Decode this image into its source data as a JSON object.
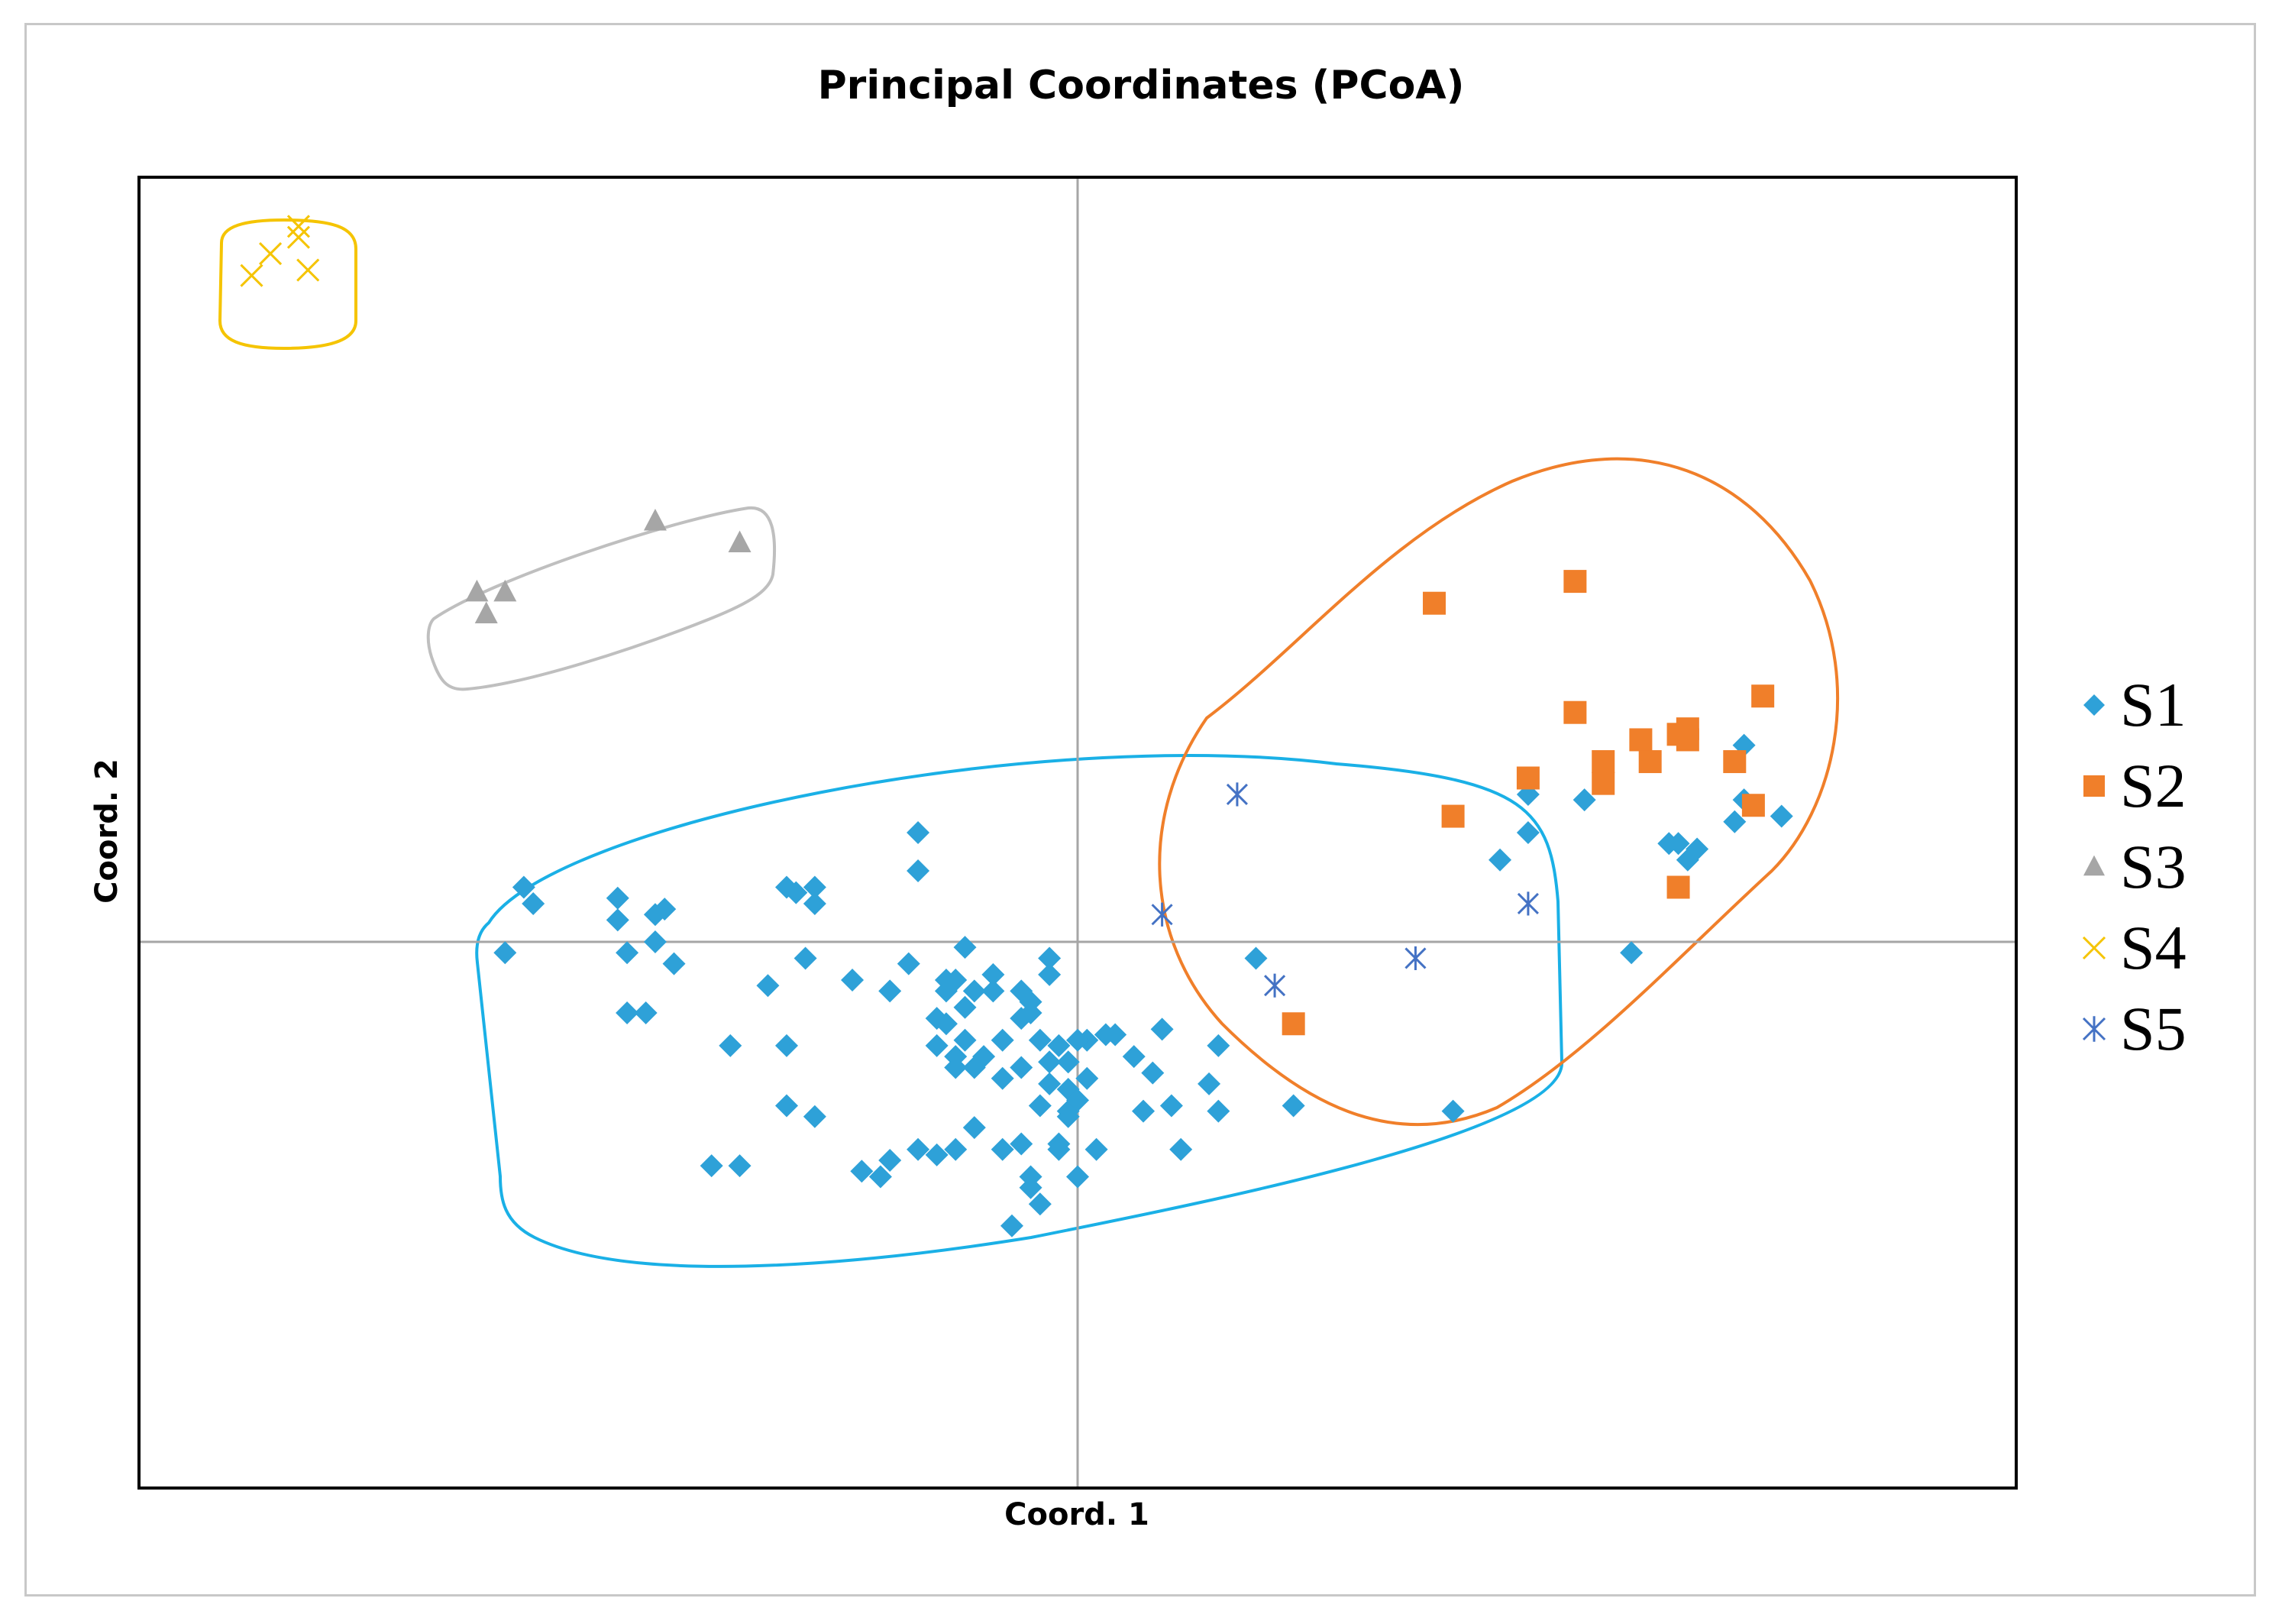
{
  "chart_data": {
    "type": "scatter",
    "title": "Principal Coordinates (PCoA)",
    "xlabel": "Coord. 1",
    "ylabel": "Coord. 2",
    "xlim": [
      -1.0,
      1.0
    ],
    "ylim": [
      -1.0,
      1.4
    ],
    "grid": false,
    "zero_lines": true,
    "legend_position": "right",
    "series": [
      {
        "name": "S1",
        "marker": "diamond",
        "color": "#2ea1d8",
        "points": [
          [
            -0.59,
            0.1
          ],
          [
            -0.58,
            0.07
          ],
          [
            -0.61,
            -0.02
          ],
          [
            -0.49,
            0.08
          ],
          [
            -0.49,
            0.04
          ],
          [
            -0.48,
            -0.02
          ],
          [
            -0.45,
            0.05
          ],
          [
            -0.44,
            0.06
          ],
          [
            -0.45,
            0.0
          ],
          [
            -0.43,
            -0.04
          ],
          [
            -0.48,
            -0.13
          ],
          [
            -0.46,
            -0.13
          ],
          [
            -0.37,
            -0.19
          ],
          [
            -0.31,
            0.1
          ],
          [
            -0.3,
            0.09
          ],
          [
            -0.28,
            0.1
          ],
          [
            -0.28,
            0.07
          ],
          [
            -0.29,
            -0.03
          ],
          [
            -0.17,
            0.2
          ],
          [
            -0.17,
            0.13
          ],
          [
            -0.24,
            -0.07
          ],
          [
            -0.2,
            -0.09
          ],
          [
            -0.18,
            -0.04
          ],
          [
            -0.14,
            -0.09
          ],
          [
            -0.15,
            -0.14
          ],
          [
            -0.13,
            -0.07
          ],
          [
            -0.12,
            -0.01
          ],
          [
            -0.11,
            -0.09
          ],
          [
            -0.12,
            -0.18
          ],
          [
            -0.11,
            -0.23
          ],
          [
            -0.14,
            -0.15
          ],
          [
            -0.1,
            -0.21
          ],
          [
            -0.15,
            -0.19
          ],
          [
            -0.12,
            -0.12
          ],
          [
            -0.13,
            -0.23
          ],
          [
            -0.14,
            -0.07
          ],
          [
            -0.13,
            -0.21
          ],
          [
            -0.09,
            -0.06
          ],
          [
            -0.09,
            -0.09
          ],
          [
            -0.08,
            -0.18
          ],
          [
            -0.06,
            -0.09
          ],
          [
            -0.06,
            -0.14
          ],
          [
            -0.06,
            -0.23
          ],
          [
            -0.05,
            -0.11
          ],
          [
            -0.04,
            -0.18
          ],
          [
            -0.05,
            -0.13
          ],
          [
            -0.04,
            -0.3
          ],
          [
            -0.08,
            -0.25
          ],
          [
            -0.06,
            -0.37
          ],
          [
            -0.31,
            -0.19
          ],
          [
            -0.33,
            -0.08
          ],
          [
            -0.39,
            -0.41
          ],
          [
            -0.36,
            -0.41
          ],
          [
            -0.31,
            -0.3
          ],
          [
            -0.28,
            -0.32
          ],
          [
            -0.23,
            -0.42
          ],
          [
            -0.21,
            -0.43
          ],
          [
            -0.2,
            -0.4
          ],
          [
            -0.17,
            -0.38
          ],
          [
            -0.15,
            -0.39
          ],
          [
            -0.13,
            -0.38
          ],
          [
            -0.11,
            -0.34
          ],
          [
            -0.08,
            -0.38
          ],
          [
            -0.05,
            -0.43
          ],
          [
            -0.04,
            -0.48
          ],
          [
            -0.07,
            -0.52
          ],
          [
            -0.05,
            -0.45
          ],
          [
            -0.03,
            -0.26
          ],
          [
            -0.03,
            -0.22
          ],
          [
            -0.02,
            -0.19
          ],
          [
            -0.01,
            -0.27
          ],
          [
            -0.01,
            -0.31
          ],
          [
            -0.02,
            -0.37
          ],
          [
            -0.01,
            -0.22
          ],
          [
            -0.01,
            -0.32
          ],
          [
            0.0,
            -0.29
          ],
          [
            0.01,
            -0.25
          ],
          [
            0.01,
            -0.18
          ],
          [
            -0.03,
            -0.03
          ],
          [
            -0.03,
            -0.06
          ],
          [
            0.0,
            -0.18
          ],
          [
            0.0,
            -0.43
          ],
          [
            -0.02,
            -0.38
          ],
          [
            0.02,
            -0.38
          ],
          [
            0.03,
            -0.17
          ],
          [
            0.04,
            -0.17
          ],
          [
            0.06,
            -0.21
          ],
          [
            0.07,
            -0.31
          ],
          [
            0.08,
            -0.24
          ],
          [
            0.09,
            -0.16
          ],
          [
            0.11,
            -0.38
          ],
          [
            0.1,
            -0.3
          ],
          [
            0.14,
            -0.26
          ],
          [
            0.15,
            -0.19
          ],
          [
            0.15,
            -0.31
          ],
          [
            0.19,
            -0.03
          ],
          [
            0.23,
            -0.3
          ],
          [
            0.4,
            -0.31
          ],
          [
            0.45,
            0.15
          ],
          [
            0.48,
            0.27
          ],
          [
            0.48,
            0.2
          ],
          [
            0.54,
            0.26
          ],
          [
            0.59,
            -0.02
          ],
          [
            0.63,
            0.18
          ],
          [
            0.64,
            0.18
          ],
          [
            0.65,
            0.15
          ],
          [
            0.66,
            0.17
          ],
          [
            0.7,
            0.22
          ],
          [
            0.71,
            0.36
          ],
          [
            0.71,
            0.26
          ],
          [
            0.75,
            0.23
          ]
        ]
      },
      {
        "name": "S2",
        "marker": "square",
        "color": "#f07f2a",
        "points": [
          [
            0.38,
            0.62
          ],
          [
            0.53,
            0.66
          ],
          [
            0.73,
            0.45
          ],
          [
            0.53,
            0.42
          ],
          [
            0.6,
            0.37
          ],
          [
            0.64,
            0.38
          ],
          [
            0.65,
            0.39
          ],
          [
            0.65,
            0.37
          ],
          [
            0.56,
            0.33
          ],
          [
            0.61,
            0.33
          ],
          [
            0.7,
            0.33
          ],
          [
            0.48,
            0.3
          ],
          [
            0.56,
            0.29
          ],
          [
            0.4,
            0.23
          ],
          [
            0.72,
            0.25
          ],
          [
            0.64,
            0.1
          ],
          [
            0.23,
            -0.15
          ]
        ]
      },
      {
        "name": "S3",
        "marker": "triangle",
        "color": "#a6a6a6",
        "points": [
          [
            -0.64,
            0.64
          ],
          [
            -0.61,
            0.64
          ],
          [
            -0.63,
            0.6
          ],
          [
            -0.45,
            0.77
          ],
          [
            -0.36,
            0.73
          ]
        ]
      },
      {
        "name": "S4",
        "marker": "x",
        "color": "#f5c400",
        "points": [
          [
            -0.83,
            1.31
          ],
          [
            -0.83,
            1.29
          ],
          [
            -0.86,
            1.26
          ],
          [
            -0.88,
            1.22
          ],
          [
            -0.82,
            1.23
          ]
        ]
      },
      {
        "name": "S5",
        "marker": "asterisk",
        "color": "#4472c4",
        "points": [
          [
            0.17,
            0.27
          ],
          [
            0.09,
            0.05
          ],
          [
            0.21,
            -0.08
          ],
          [
            0.36,
            -0.03
          ],
          [
            0.48,
            0.07
          ]
        ]
      }
    ],
    "hulls": [
      {
        "name": "S1 cluster",
        "color": "#1ab0e6"
      },
      {
        "name": "S2 cluster",
        "color": "#f07f2a"
      },
      {
        "name": "S3 cluster",
        "color": "#bfbfbf"
      },
      {
        "name": "S4 cluster",
        "color": "#f5c400"
      }
    ]
  }
}
